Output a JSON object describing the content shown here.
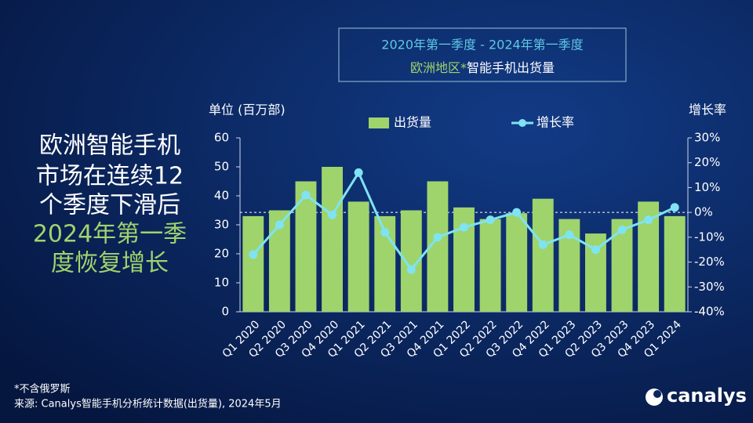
{
  "headline": {
    "lines": [
      {
        "text": "欧洲智能手机",
        "color": "#ffffff"
      },
      {
        "text": "市场在连续12",
        "color": "#ffffff"
      },
      {
        "text": "个季度下滑后",
        "color": "#ffffff"
      },
      {
        "text": "2024年第一季",
        "color": "#9fd46c"
      },
      {
        "text": "度恢复增长",
        "color": "#9fd46c"
      }
    ]
  },
  "chart_data": {
    "type": "bar",
    "title": {
      "line1": "2020年第一季度 - 2024年第一季度",
      "line2_highlight": "欧洲地区*",
      "line2": "智能手机出货量"
    },
    "y_label": "单位 (百万部)",
    "y2_label": "增长率",
    "categories": [
      "Q1 2020",
      "Q2 2020",
      "Q3 2020",
      "Q4 2020",
      "Q1 2021",
      "Q2 2021",
      "Q3 2021",
      "Q4 2021",
      "Q1 2022",
      "Q2 2022",
      "Q3 2022",
      "Q4 2022",
      "Q1 2023",
      "Q2 2023",
      "Q3 2023",
      "Q4 2023",
      "Q1 2024"
    ],
    "series": [
      {
        "name": "出货量",
        "type": "bar",
        "color": "#9fd46c",
        "values": [
          33,
          35,
          45,
          50,
          38,
          33,
          35,
          45,
          36,
          32,
          34,
          39,
          32,
          27,
          32,
          38,
          33
        ]
      },
      {
        "name": "增长率",
        "type": "line",
        "axis": "y2",
        "color": "#7fe3f2",
        "values": [
          -17,
          -5,
          7,
          -1,
          16,
          -8,
          -23,
          -10,
          -6,
          -3,
          0,
          -13,
          -9,
          -15,
          -7,
          -3,
          2
        ]
      }
    ],
    "ylim": [
      0,
      60
    ],
    "yticks": [
      0,
      10,
      20,
      30,
      40,
      50,
      60
    ],
    "y2lim": [
      -40,
      30
    ],
    "y2ticks": [
      {
        "value": 30,
        "label": "30%"
      },
      {
        "value": 20,
        "label": "20%"
      },
      {
        "value": 10,
        "label": "10%"
      },
      {
        "value": 0,
        "label": "0%"
      },
      {
        "value": -10,
        "label": "-10%"
      },
      {
        "value": -20,
        "label": "-20%"
      },
      {
        "value": -30,
        "label": "-30%"
      },
      {
        "value": -40,
        "label": "-40%"
      }
    ],
    "y2_reference_line": 0
  },
  "footnotes": [
    "*不含俄罗斯",
    "来源: Canalys智能手机分析统计数据(出货量), 2024年5月"
  ],
  "logo": "canalys"
}
